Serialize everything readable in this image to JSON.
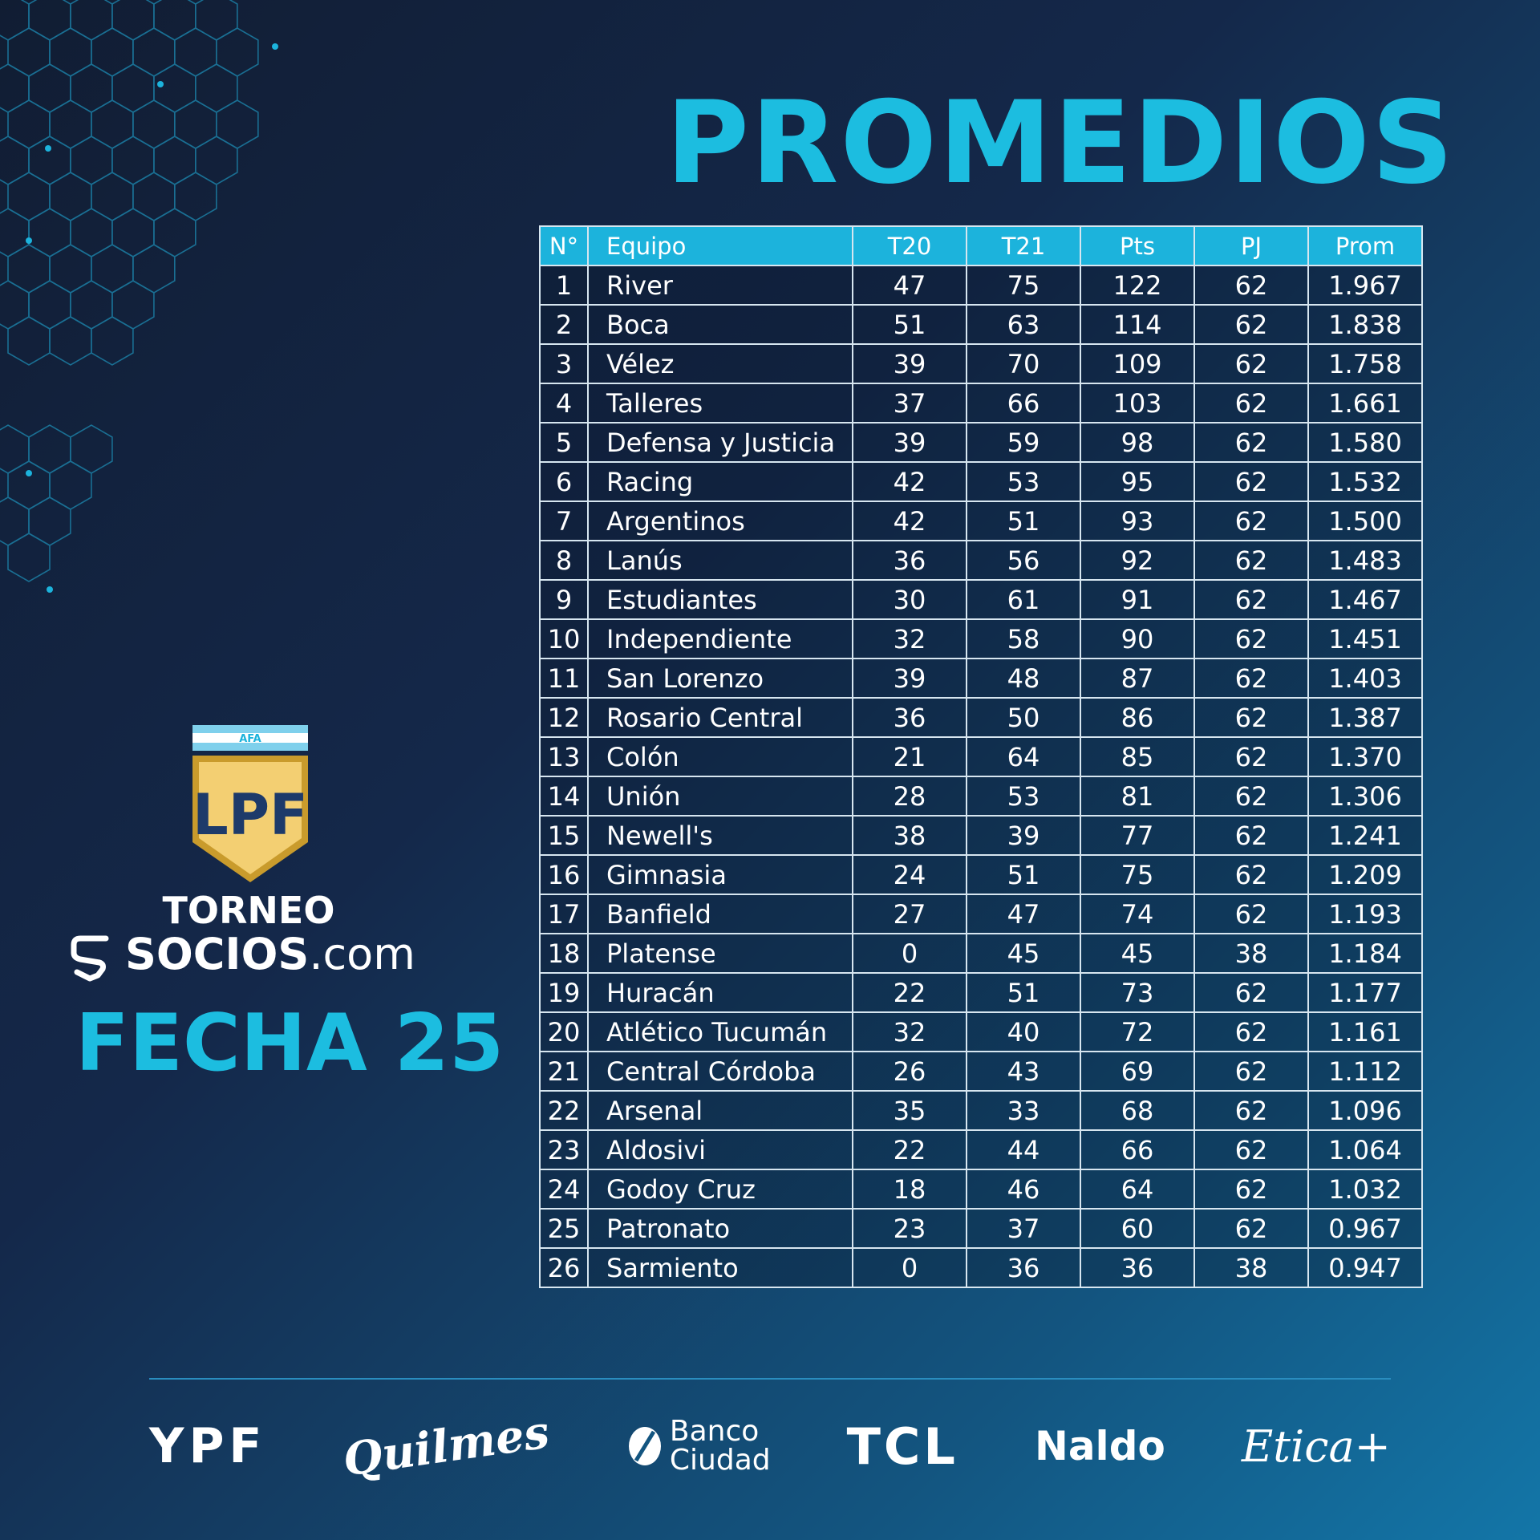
{
  "title": "PROMEDIOS",
  "table": {
    "headers": {
      "pos": "N°",
      "team": "Equipo",
      "t20": "T20",
      "t21": "T21",
      "pts": "Pts",
      "pj": "PJ",
      "prom": "Prom"
    },
    "rows": [
      {
        "pos": "1",
        "team": "River",
        "t20": "47",
        "t21": "75",
        "pts": "122",
        "pj": "62",
        "prom": "1.967"
      },
      {
        "pos": "2",
        "team": "Boca",
        "t20": "51",
        "t21": "63",
        "pts": "114",
        "pj": "62",
        "prom": "1.838"
      },
      {
        "pos": "3",
        "team": "Vélez",
        "t20": "39",
        "t21": "70",
        "pts": "109",
        "pj": "62",
        "prom": "1.758"
      },
      {
        "pos": "4",
        "team": "Talleres",
        "t20": "37",
        "t21": "66",
        "pts": "103",
        "pj": "62",
        "prom": "1.661"
      },
      {
        "pos": "5",
        "team": "Defensa y Justicia",
        "t20": "39",
        "t21": "59",
        "pts": "98",
        "pj": "62",
        "prom": "1.580"
      },
      {
        "pos": "6",
        "team": "Racing",
        "t20": "42",
        "t21": "53",
        "pts": "95",
        "pj": "62",
        "prom": "1.532"
      },
      {
        "pos": "7",
        "team": "Argentinos",
        "t20": "42",
        "t21": "51",
        "pts": "93",
        "pj": "62",
        "prom": "1.500"
      },
      {
        "pos": "8",
        "team": "Lanús",
        "t20": "36",
        "t21": "56",
        "pts": "92",
        "pj": "62",
        "prom": "1.483"
      },
      {
        "pos": "9",
        "team": "Estudiantes",
        "t20": "30",
        "t21": "61",
        "pts": "91",
        "pj": "62",
        "prom": "1.467"
      },
      {
        "pos": "10",
        "team": "Independiente",
        "t20": "32",
        "t21": "58",
        "pts": "90",
        "pj": "62",
        "prom": "1.451"
      },
      {
        "pos": "11",
        "team": "San Lorenzo",
        "t20": "39",
        "t21": "48",
        "pts": "87",
        "pj": "62",
        "prom": "1.403"
      },
      {
        "pos": "12",
        "team": "Rosario Central",
        "t20": "36",
        "t21": "50",
        "pts": "86",
        "pj": "62",
        "prom": "1.387"
      },
      {
        "pos": "13",
        "team": "Colón",
        "t20": "21",
        "t21": "64",
        "pts": "85",
        "pj": "62",
        "prom": "1.370"
      },
      {
        "pos": "14",
        "team": "Unión",
        "t20": "28",
        "t21": "53",
        "pts": "81",
        "pj": "62",
        "prom": "1.306"
      },
      {
        "pos": "15",
        "team": "Newell's",
        "t20": "38",
        "t21": "39",
        "pts": "77",
        "pj": "62",
        "prom": "1.241"
      },
      {
        "pos": "16",
        "team": "Gimnasia",
        "t20": "24",
        "t21": "51",
        "pts": "75",
        "pj": "62",
        "prom": "1.209"
      },
      {
        "pos": "17",
        "team": "Banfield",
        "t20": "27",
        "t21": "47",
        "pts": "74",
        "pj": "62",
        "prom": "1.193"
      },
      {
        "pos": "18",
        "team": "Platense",
        "t20": "0",
        "t21": "45",
        "pts": "45",
        "pj": "38",
        "prom": "1.184"
      },
      {
        "pos": "19",
        "team": "Huracán",
        "t20": "22",
        "t21": "51",
        "pts": "73",
        "pj": "62",
        "prom": "1.177"
      },
      {
        "pos": "20",
        "team": "Atlético Tucumán",
        "t20": "32",
        "t21": "40",
        "pts": "72",
        "pj": "62",
        "prom": "1.161"
      },
      {
        "pos": "21",
        "team": "Central Córdoba",
        "t20": "26",
        "t21": "43",
        "pts": "69",
        "pj": "62",
        "prom": "1.112"
      },
      {
        "pos": "22",
        "team": "Arsenal",
        "t20": "35",
        "t21": "33",
        "pts": "68",
        "pj": "62",
        "prom": "1.096"
      },
      {
        "pos": "23",
        "team": "Aldosivi",
        "t20": "22",
        "t21": "44",
        "pts": "66",
        "pj": "62",
        "prom": "1.064"
      },
      {
        "pos": "24",
        "team": "Godoy Cruz",
        "t20": "18",
        "t21": "46",
        "pts": "64",
        "pj": "62",
        "prom": "1.032"
      },
      {
        "pos": "25",
        "team": "Patronato",
        "t20": "23",
        "t21": "37",
        "pts": "60",
        "pj": "62",
        "prom": "0.967"
      },
      {
        "pos": "26",
        "team": "Sarmiento",
        "t20": "0",
        "t21": "36",
        "pts": "36",
        "pj": "38",
        "prom": "0.947"
      }
    ]
  },
  "league": {
    "badge_top": "AFA",
    "badge_letters": "LPF",
    "torneo": "TORNEO",
    "socios_bold": "SOCIOS",
    "socios_suffix": ".com",
    "fecha": "FECHA 25"
  },
  "sponsors": {
    "ypf": "YPF",
    "quilmes": "Quilmes",
    "banco_line1": "Banco",
    "banco_line2": "Ciudad",
    "tcl": "TCL",
    "naldo": "Naldo",
    "etica": "Etica+"
  },
  "colors": {
    "accent": "#1cbde0",
    "header_bg": "#1cb3dc",
    "background_dark": "#111d33",
    "background_light": "#1376a8",
    "badge_gold": "#f3cf72",
    "badge_navy": "#1d3a6a",
    "badge_sky": "#7fd0ec"
  },
  "icons": {
    "hex_pattern": "hexagon-network-icon",
    "afa_badge": "lpf-shield-icon",
    "socios": "socios-s-icon",
    "banco": "banco-ciudad-leaf-icon"
  }
}
